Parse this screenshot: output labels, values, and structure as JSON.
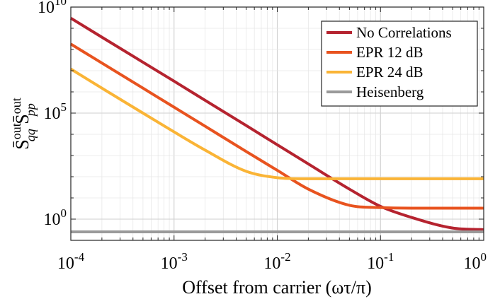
{
  "chart_data": {
    "type": "line",
    "xscale": "log",
    "yscale": "log",
    "xlim": [
      0.0001,
      1
    ],
    "ylim": [
      0.1,
      10000000000
    ],
    "grid": true,
    "legend_position": "top-right",
    "xlabel": "Offset from carrier (ωτ/π)",
    "ylabel": {
      "parts": [
        "S̄",
        "out",
        "qq",
        " S̄",
        "out",
        "pp"
      ]
    },
    "x_ticks": [
      {
        "base": "10",
        "exp": "-4"
      },
      {
        "base": "10",
        "exp": "-3"
      },
      {
        "base": "10",
        "exp": "-2"
      },
      {
        "base": "10",
        "exp": "-1"
      },
      {
        "base": "10",
        "exp": "0"
      }
    ],
    "y_ticks": [
      {
        "base": "10",
        "exp": "0"
      },
      {
        "base": "10",
        "exp": "5"
      },
      {
        "base": "10",
        "exp": "10"
      }
    ],
    "series": [
      {
        "name": "No Correlations",
        "color": "#b5232f",
        "x": [
          0.0001,
          0.0002,
          0.0005,
          0.001,
          0.002,
          0.005,
          0.01,
          0.02,
          0.05,
          0.1,
          0.2,
          0.5,
          1
        ],
        "y": [
          3000000000,
          380000000,
          25000000,
          3200000,
          400000,
          26000,
          3200,
          400,
          26,
          4,
          1.2,
          0.38,
          0.32
        ]
      },
      {
        "name": "EPR 12 dB",
        "color": "#e8531f",
        "x": [
          0.0001,
          0.0002,
          0.0005,
          0.001,
          0.002,
          0.005,
          0.01,
          0.02,
          0.05,
          0.1,
          0.2,
          0.5,
          1
        ],
        "y": [
          180000000,
          23000000,
          1500000,
          190000,
          24000,
          1550,
          200,
          26,
          4.5,
          3.5,
          3.3,
          3.3,
          3.3
        ]
      },
      {
        "name": "EPR 24 dB",
        "color": "#fab436",
        "x": [
          0.0001,
          0.0002,
          0.0005,
          0.001,
          0.002,
          0.005,
          0.01,
          0.02,
          0.05,
          0.1,
          0.2,
          0.5,
          1
        ],
        "y": [
          12000000,
          1500000,
          100000,
          13000,
          1800,
          180,
          90,
          80,
          80,
          80,
          80,
          80,
          80
        ]
      },
      {
        "name": "Heisenberg",
        "color": "#9a9a9a",
        "x": [
          0.0001,
          1
        ],
        "y": [
          0.25,
          0.25
        ]
      }
    ]
  }
}
